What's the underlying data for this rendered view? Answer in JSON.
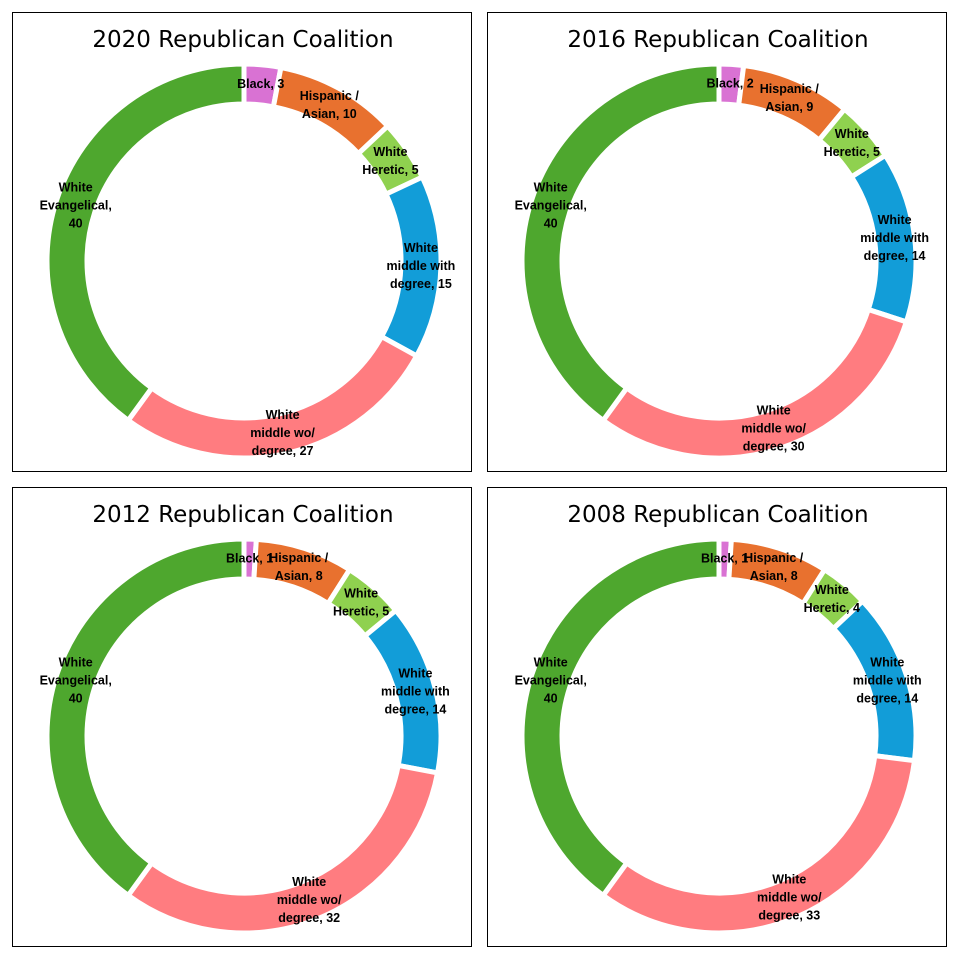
{
  "colors": {
    "black": "#d972d3",
    "hispanic_asian": "#e8712f",
    "white_heretic": "#8fd14f",
    "white_middle_degree": "#129dd8",
    "white_middle_no_degree": "#ff7c80",
    "white_evangelical": "#4ea72e"
  },
  "chart_data": [
    {
      "type": "donut",
      "title": "2020 Republican Coalition",
      "categories": [
        "Black",
        "Hispanic / Asian",
        "White Heretic",
        "White middle with degree",
        "White middle wo/ degree",
        "White Evangelical"
      ],
      "values": [
        3,
        10,
        5,
        15,
        27,
        40
      ],
      "label_lines": [
        [
          "Black, 3"
        ],
        [
          "Hispanic /",
          "Asian, 10"
        ],
        [
          "White",
          "Heretic, 5"
        ],
        [
          "White",
          "middle with",
          "degree, 15"
        ],
        [
          "White",
          "middle wo/",
          "degree, 27"
        ],
        [
          "White",
          "Evangelical,",
          "40"
        ]
      ]
    },
    {
      "type": "donut",
      "title": "2016 Republican Coalition",
      "categories": [
        "Black",
        "Hispanic / Asian",
        "White Heretic",
        "White middle with degree",
        "White middle wo/ degree",
        "White Evangelical"
      ],
      "values": [
        2,
        9,
        5,
        14,
        30,
        40
      ],
      "label_lines": [
        [
          "Black, 2"
        ],
        [
          "Hispanic /",
          "Asian, 9"
        ],
        [
          "White",
          "Heretic, 5"
        ],
        [
          "White",
          "middle with",
          "degree, 14"
        ],
        [
          "White",
          "middle wo/",
          "degree, 30"
        ],
        [
          "White",
          "Evangelical,",
          "40"
        ]
      ]
    },
    {
      "type": "donut",
      "title": "2012 Republican Coalition",
      "categories": [
        "Black",
        "Hispanic / Asian",
        "White Heretic",
        "White middle with degree",
        "White middle wo/ degree",
        "White Evangelical"
      ],
      "values": [
        1,
        8,
        5,
        14,
        32,
        40
      ],
      "label_lines": [
        [
          "Black, 1"
        ],
        [
          "Hispanic /",
          "Asian, 8"
        ],
        [
          "White",
          "Heretic, 5"
        ],
        [
          "White",
          "middle with",
          "degree, 14"
        ],
        [
          "White",
          "middle wo/",
          "degree, 32"
        ],
        [
          "White",
          "Evangelical,",
          "40"
        ]
      ]
    },
    {
      "type": "donut",
      "title": "2008 Republican Coalition",
      "categories": [
        "Black",
        "Hispanic / Asian",
        "White Heretic",
        "White middle with degree",
        "White middle wo/ degree",
        "White Evangelical"
      ],
      "values": [
        1,
        8,
        4,
        14,
        33,
        40
      ],
      "label_lines": [
        [
          "Black, 1"
        ],
        [
          "Hispanic /",
          "Asian, 8"
        ],
        [
          "White",
          "Heretic, 4"
        ],
        [
          "White",
          "middle with",
          "degree, 14"
        ],
        [
          "White",
          "middle wo/",
          "degree, 33"
        ],
        [
          "White",
          "Evangelical,",
          "40"
        ]
      ]
    }
  ]
}
